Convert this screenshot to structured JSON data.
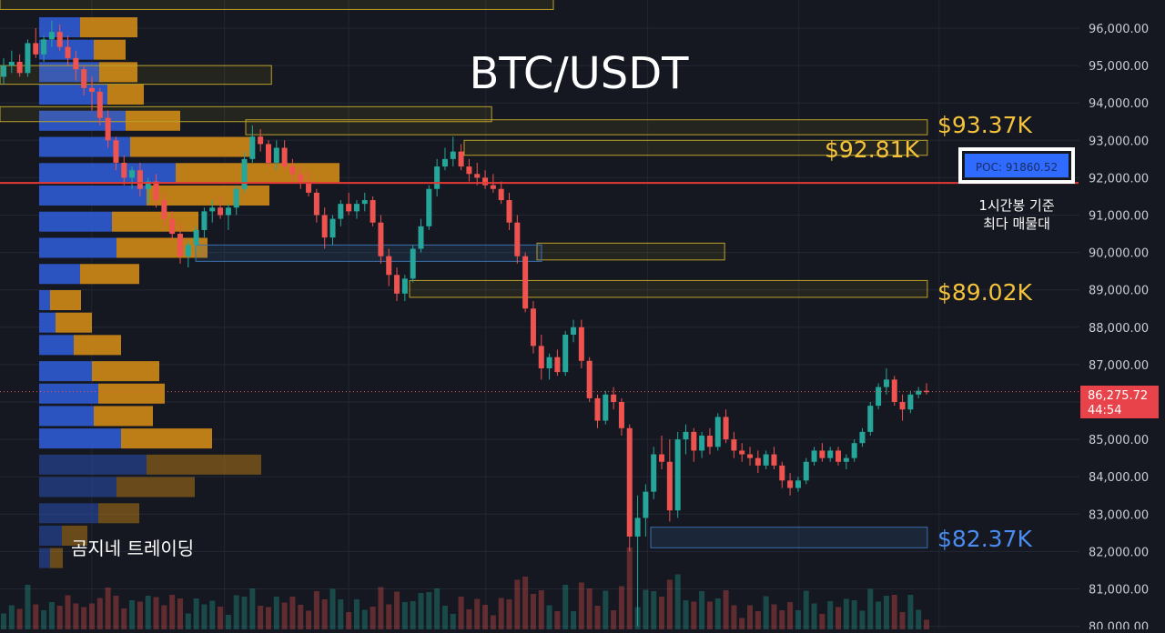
{
  "title": "BTC/USDT",
  "watermark": "곰지네 트레이딩",
  "price_badge": {
    "price": "86,275.72",
    "countdown": "44:54"
  },
  "poc": {
    "label": "POC: 91860.52",
    "annotation_line1": "1시간봉 기준",
    "annotation_line2": "최다 매물대"
  },
  "levels": [
    {
      "label": "$93.37K",
      "color": "#f5c23b"
    },
    {
      "label": "$92.81K",
      "color": "#f5c23b"
    },
    {
      "label": "$89.02K",
      "color": "#f5c23b"
    },
    {
      "label": "$82.37K",
      "color": "#4a8cf0"
    }
  ],
  "colors": {
    "up": "#26a69a",
    "down": "#ef5350",
    "poc_line": "#e53935",
    "vp_blue": "#2f5bd3",
    "vp_orange": "#d08a16",
    "zone_yellow": "#bba12a",
    "zone_blue": "#3a6fae"
  },
  "chart_data": {
    "type": "candlestick",
    "title": "BTC/USDT",
    "y_ticks": [
      "96,000.00",
      "95,000.00",
      "94,000.00",
      "93,000.00",
      "92,000.00",
      "91,000.00",
      "90,000.00",
      "89,000.00",
      "88,000.00",
      "87,000.00",
      "86,000.00",
      "85,000.00",
      "84,000.00",
      "83,000.00",
      "82,000.00",
      "81,000.00",
      "80,000.00"
    ],
    "ylim": [
      79900,
      96700
    ],
    "current_price": 86275.72,
    "poc_price": 91860.52,
    "candles": [
      [
        94700,
        95200,
        94500,
        95000
      ],
      [
        95000,
        95400,
        94800,
        95100
      ],
      [
        95100,
        95300,
        94700,
        94800
      ],
      [
        94800,
        95700,
        94700,
        95600
      ],
      [
        95600,
        96000,
        95200,
        95300
      ],
      [
        95300,
        95800,
        95100,
        95700
      ],
      [
        95700,
        96200,
        95500,
        95900
      ],
      [
        95900,
        96100,
        95400,
        95500
      ],
      [
        95500,
        95800,
        95000,
        95200
      ],
      [
        95200,
        95400,
        94600,
        94900
      ],
      [
        94900,
        95000,
        94200,
        94400
      ],
      [
        94400,
        94700,
        93800,
        94300
      ],
      [
        94300,
        94400,
        93400,
        93600
      ],
      [
        93600,
        93800,
        92800,
        93000
      ],
      [
        93000,
        93100,
        92200,
        92400
      ],
      [
        92400,
        92600,
        91800,
        92000
      ],
      [
        92000,
        92300,
        91700,
        92200
      ],
      [
        92200,
        92400,
        91500,
        91700
      ],
      [
        91700,
        92000,
        91300,
        91900
      ],
      [
        91900,
        92100,
        91200,
        91400
      ],
      [
        91400,
        91600,
        90700,
        90900
      ],
      [
        90900,
        91100,
        90300,
        90500
      ],
      [
        90500,
        90800,
        89700,
        89900
      ],
      [
        89900,
        90300,
        89600,
        90200
      ],
      [
        90200,
        90700,
        90000,
        90600
      ],
      [
        90600,
        91200,
        90400,
        91100
      ],
      [
        91100,
        91400,
        90800,
        91200
      ],
      [
        91200,
        91500,
        90900,
        91000
      ],
      [
        91000,
        91300,
        90600,
        91200
      ],
      [
        91200,
        91800,
        91000,
        91700
      ],
      [
        91700,
        92700,
        91600,
        92500
      ],
      [
        92500,
        93400,
        92400,
        93100
      ],
      [
        93100,
        93300,
        92700,
        92900
      ],
      [
        92900,
        93000,
        92300,
        92400
      ],
      [
        92400,
        93000,
        92200,
        92800
      ],
      [
        92800,
        93000,
        92200,
        92300
      ],
      [
        92300,
        92500,
        91900,
        92100
      ],
      [
        92100,
        92300,
        91700,
        91900
      ],
      [
        91900,
        92200,
        91500,
        91600
      ],
      [
        91600,
        91700,
        90800,
        91000
      ],
      [
        91000,
        91200,
        90100,
        90400
      ],
      [
        90400,
        91000,
        90200,
        90900
      ],
      [
        90900,
        91400,
        90700,
        91300
      ],
      [
        91300,
        91600,
        91000,
        91100
      ],
      [
        91100,
        91400,
        90900,
        91300
      ],
      [
        91300,
        91600,
        91100,
        91400
      ],
      [
        91400,
        91500,
        90700,
        90800
      ],
      [
        90800,
        91000,
        89700,
        89900
      ],
      [
        89900,
        90100,
        89100,
        89400
      ],
      [
        89400,
        89600,
        88700,
        88900
      ],
      [
        88900,
        89400,
        88700,
        89300
      ],
      [
        89300,
        90200,
        89200,
        90100
      ],
      [
        90100,
        90900,
        90000,
        90700
      ],
      [
        90700,
        91800,
        90600,
        91700
      ],
      [
        91700,
        92500,
        91500,
        92300
      ],
      [
        92300,
        92800,
        92200,
        92500
      ],
      [
        92500,
        93100,
        92300,
        92700
      ],
      [
        92700,
        92900,
        92200,
        92300
      ],
      [
        92300,
        92500,
        91900,
        92100
      ],
      [
        92100,
        92400,
        91800,
        92000
      ],
      [
        92000,
        92200,
        91700,
        91800
      ],
      [
        91800,
        92100,
        91600,
        91700
      ],
      [
        91700,
        91900,
        91300,
        91400
      ],
      [
        91400,
        91600,
        90600,
        90800
      ],
      [
        90800,
        91000,
        89700,
        89900
      ],
      [
        89900,
        90000,
        88400,
        88500
      ],
      [
        88500,
        88700,
        87300,
        87500
      ],
      [
        87500,
        87800,
        86600,
        86900
      ],
      [
        86900,
        87300,
        86600,
        87200
      ],
      [
        87200,
        87400,
        86700,
        86800
      ],
      [
        86800,
        87900,
        86700,
        87800
      ],
      [
        87800,
        88200,
        87600,
        88000
      ],
      [
        88000,
        88200,
        86900,
        87100
      ],
      [
        87100,
        87200,
        86000,
        86100
      ],
      [
        86100,
        86200,
        85300,
        85500
      ],
      [
        85500,
        86300,
        85400,
        86200
      ],
      [
        86200,
        86400,
        85800,
        86000
      ],
      [
        86000,
        86100,
        85100,
        85300
      ],
      [
        85300,
        85400,
        82000,
        82400
      ],
      [
        82400,
        83500,
        80000,
        82900
      ],
      [
        82900,
        83800,
        82400,
        83600
      ],
      [
        83600,
        84800,
        83400,
        84600
      ],
      [
        84600,
        85100,
        84200,
        84400
      ],
      [
        84400,
        85000,
        82800,
        83100
      ],
      [
        83100,
        85200,
        82900,
        85000
      ],
      [
        85000,
        85400,
        84600,
        85200
      ],
      [
        85200,
        85300,
        84400,
        84700
      ],
      [
        84700,
        85200,
        84500,
        85100
      ],
      [
        85100,
        85300,
        84600,
        84800
      ],
      [
        84800,
        85700,
        84700,
        85600
      ],
      [
        85600,
        85800,
        84900,
        85000
      ],
      [
        85000,
        85200,
        84500,
        84700
      ],
      [
        84700,
        84900,
        84400,
        84600
      ],
      [
        84600,
        84800,
        84300,
        84500
      ],
      [
        84500,
        84700,
        84100,
        84300
      ],
      [
        84300,
        84700,
        84200,
        84600
      ],
      [
        84600,
        84800,
        84200,
        84300
      ],
      [
        84300,
        84400,
        83700,
        83900
      ],
      [
        83900,
        84100,
        83500,
        83700
      ],
      [
        83700,
        84000,
        83600,
        83900
      ],
      [
        83900,
        84500,
        83800,
        84400
      ],
      [
        84400,
        84800,
        84300,
        84700
      ],
      [
        84700,
        84900,
        84400,
        84500
      ],
      [
        84500,
        84800,
        84400,
        84700
      ],
      [
        84700,
        84800,
        84300,
        84400
      ],
      [
        84400,
        84600,
        84200,
        84500
      ],
      [
        84500,
        85000,
        84400,
        84900
      ],
      [
        84900,
        85300,
        84800,
        85200
      ],
      [
        85200,
        86000,
        85100,
        85900
      ],
      [
        85900,
        86500,
        85800,
        86400
      ],
      [
        86400,
        86900,
        86200,
        86600
      ],
      [
        86600,
        86700,
        85900,
        86000
      ],
      [
        86000,
        86200,
        85500,
        85800
      ],
      [
        85800,
        86300,
        85700,
        86200
      ],
      [
        86200,
        86400,
        86100,
        86300
      ],
      [
        86300,
        86500,
        86200,
        86276
      ]
    ],
    "volume_profile": [
      {
        "price": 96000,
        "buy": 45,
        "sell": 63
      },
      {
        "price": 95400,
        "buy": 60,
        "sell": 35
      },
      {
        "price": 94800,
        "buy": 66,
        "sell": 42
      },
      {
        "price": 94200,
        "buy": 75,
        "sell": 40
      },
      {
        "price": 93500,
        "buy": 95,
        "sell": 60
      },
      {
        "price": 92800,
        "buy": 100,
        "sell": 135
      },
      {
        "price": 92100,
        "buy": 150,
        "sell": 180
      },
      {
        "price": 91500,
        "buy": 118,
        "sell": 135
      },
      {
        "price": 90800,
        "buy": 80,
        "sell": 95
      },
      {
        "price": 90100,
        "buy": 85,
        "sell": 100
      },
      {
        "price": 89400,
        "buy": 45,
        "sell": 65
      },
      {
        "price": 88700,
        "buy": 12,
        "sell": 34
      },
      {
        "price": 88100,
        "buy": 18,
        "sell": 40
      },
      {
        "price": 87500,
        "buy": 38,
        "sell": 52
      },
      {
        "price": 86800,
        "buy": 58,
        "sell": 74
      },
      {
        "price": 86200,
        "buy": 65,
        "sell": 73
      },
      {
        "price": 85600,
        "buy": 60,
        "sell": 65
      },
      {
        "price": 85000,
        "buy": 90,
        "sell": 100
      },
      {
        "price": 84300,
        "buy": 118,
        "sell": 126
      },
      {
        "price": 83700,
        "buy": 85,
        "sell": 86
      },
      {
        "price": 83000,
        "buy": 65,
        "sell": 45
      },
      {
        "price": 82400,
        "buy": 25,
        "sell": 28
      },
      {
        "price": 81800,
        "buy": 12,
        "sell": 14
      }
    ],
    "zones": [
      {
        "low": 96500,
        "high": 96800,
        "x_end": 0.475
      },
      {
        "low": 94500,
        "high": 95000,
        "x_end": 0.233
      },
      {
        "low": 93500,
        "high": 93900,
        "x_end": 0.422
      },
      {
        "low": 93150,
        "high": 93550,
        "x_end": 0.796
      },
      {
        "low": 92600,
        "high": 93000,
        "x_end": 0.796
      },
      {
        "low": 89800,
        "high": 90250,
        "x_end": 0.622
      },
      {
        "low": 88800,
        "high": 89250,
        "x_end": 0.796
      },
      {
        "low": 82100,
        "high": 82650,
        "x_end": 0.796,
        "color": "blue"
      }
    ]
  }
}
